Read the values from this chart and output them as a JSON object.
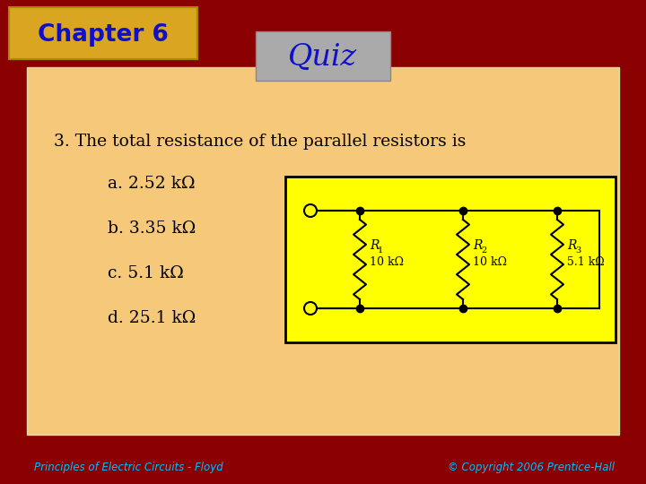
{
  "background_color": "#8B0000",
  "panel_color": "#F5C87A",
  "chapter_box_color": "#DAA520",
  "chapter_text": "Chapter 6",
  "chapter_text_color": "#1010CC",
  "quiz_box_color": "#AAAAAA",
  "quiz_text": "Quiz",
  "quiz_text_color": "#1010CC",
  "question_text": "3. The total resistance of the parallel resistors is",
  "question_color": "#000000",
  "answers": [
    "a. 2.52 kΩ",
    "b. 3.35 kΩ",
    "c. 5.1 kΩ",
    "d. 25.1 kΩ"
  ],
  "answer_color": "#000000",
  "circuit_box_color": "#FFFF00",
  "circuit_box_border": "#000000",
  "footer_left": "Principles of Electric Circuits - Floyd",
  "footer_right": "© Copyright 2006 Prentice-Hall",
  "footer_color": "#00BFFF",
  "resistor_labels": [
    "R",
    "R",
    "R"
  ],
  "resistor_subs": [
    "1",
    "2",
    "3"
  ],
  "resistor_values": [
    "10 kΩ",
    "10 kΩ",
    "5.1 kΩ"
  ]
}
